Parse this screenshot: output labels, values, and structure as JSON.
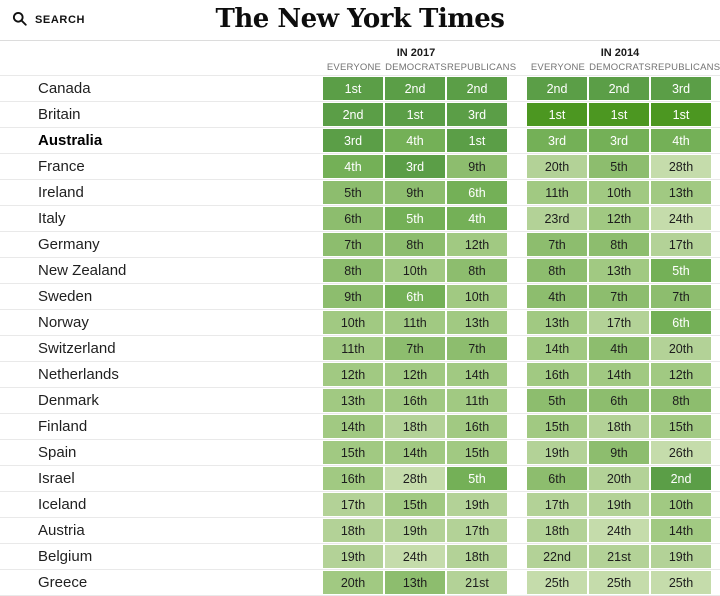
{
  "topbar": {
    "search_label": "SEARCH",
    "brand": "The New York Times"
  },
  "colors": {
    "levels": [
      "#4c9721",
      "#5b9e47",
      "#74b057",
      "#8dbd6e",
      "#a1c982",
      "#b3d297",
      "#c5dcab"
    ],
    "dark_text": "#1d1d1d",
    "light_text": "#ffffff",
    "white_text_max_level": 2
  },
  "table": {
    "groups": [
      {
        "label": "IN 2017"
      },
      {
        "label": "IN 2014"
      }
    ],
    "columns": [
      "EVERYONE",
      "DEMOCRATS",
      "REPUBLICANS"
    ],
    "rows": [
      {
        "country": "Canada",
        "bold": false,
        "cells": [
          {
            "text": "1st",
            "level": 1
          },
          {
            "text": "2nd",
            "level": 1
          },
          {
            "text": "2nd",
            "level": 1
          },
          {
            "text": "2nd",
            "level": 1
          },
          {
            "text": "2nd",
            "level": 1
          },
          {
            "text": "3rd",
            "level": 1
          }
        ]
      },
      {
        "country": "Britain",
        "bold": false,
        "cells": [
          {
            "text": "2nd",
            "level": 1
          },
          {
            "text": "1st",
            "level": 1
          },
          {
            "text": "3rd",
            "level": 1
          },
          {
            "text": "1st",
            "level": 0
          },
          {
            "text": "1st",
            "level": 0
          },
          {
            "text": "1st",
            "level": 0
          }
        ]
      },
      {
        "country": "Australia",
        "bold": true,
        "cells": [
          {
            "text": "3rd",
            "level": 1
          },
          {
            "text": "4th",
            "level": 2
          },
          {
            "text": "1st",
            "level": 1
          },
          {
            "text": "3rd",
            "level": 2
          },
          {
            "text": "3rd",
            "level": 2
          },
          {
            "text": "4th",
            "level": 2
          }
        ]
      },
      {
        "country": "France",
        "bold": false,
        "cells": [
          {
            "text": "4th",
            "level": 2
          },
          {
            "text": "3rd",
            "level": 1
          },
          {
            "text": "9th",
            "level": 3
          },
          {
            "text": "20th",
            "level": 5
          },
          {
            "text": "5th",
            "level": 3
          },
          {
            "text": "28th",
            "level": 6
          }
        ]
      },
      {
        "country": "Ireland",
        "bold": false,
        "cells": [
          {
            "text": "5th",
            "level": 3
          },
          {
            "text": "9th",
            "level": 3
          },
          {
            "text": "6th",
            "level": 2
          },
          {
            "text": "11th",
            "level": 4
          },
          {
            "text": "10th",
            "level": 4
          },
          {
            "text": "13th",
            "level": 4
          }
        ]
      },
      {
        "country": "Italy",
        "bold": false,
        "cells": [
          {
            "text": "6th",
            "level": 3
          },
          {
            "text": "5th",
            "level": 2
          },
          {
            "text": "4th",
            "level": 2
          },
          {
            "text": "23rd",
            "level": 5
          },
          {
            "text": "12th",
            "level": 4
          },
          {
            "text": "24th",
            "level": 6
          }
        ]
      },
      {
        "country": "Germany",
        "bold": false,
        "cells": [
          {
            "text": "7th",
            "level": 3
          },
          {
            "text": "8th",
            "level": 3
          },
          {
            "text": "12th",
            "level": 4
          },
          {
            "text": "7th",
            "level": 3
          },
          {
            "text": "8th",
            "level": 3
          },
          {
            "text": "17th",
            "level": 5
          }
        ]
      },
      {
        "country": "New Zealand",
        "bold": false,
        "cells": [
          {
            "text": "8th",
            "level": 3
          },
          {
            "text": "10th",
            "level": 4
          },
          {
            "text": "8th",
            "level": 3
          },
          {
            "text": "8th",
            "level": 3
          },
          {
            "text": "13th",
            "level": 4
          },
          {
            "text": "5th",
            "level": 2
          }
        ]
      },
      {
        "country": "Sweden",
        "bold": false,
        "cells": [
          {
            "text": "9th",
            "level": 3
          },
          {
            "text": "6th",
            "level": 2
          },
          {
            "text": "10th",
            "level": 4
          },
          {
            "text": "4th",
            "level": 3
          },
          {
            "text": "7th",
            "level": 3
          },
          {
            "text": "7th",
            "level": 3
          }
        ]
      },
      {
        "country": "Norway",
        "bold": false,
        "cells": [
          {
            "text": "10th",
            "level": 4
          },
          {
            "text": "11th",
            "level": 4
          },
          {
            "text": "13th",
            "level": 4
          },
          {
            "text": "13th",
            "level": 4
          },
          {
            "text": "17th",
            "level": 5
          },
          {
            "text": "6th",
            "level": 2
          }
        ]
      },
      {
        "country": "Switzerland",
        "bold": false,
        "cells": [
          {
            "text": "11th",
            "level": 4
          },
          {
            "text": "7th",
            "level": 3
          },
          {
            "text": "7th",
            "level": 3
          },
          {
            "text": "14th",
            "level": 4
          },
          {
            "text": "4th",
            "level": 3
          },
          {
            "text": "20th",
            "level": 5
          }
        ]
      },
      {
        "country": "Netherlands",
        "bold": false,
        "cells": [
          {
            "text": "12th",
            "level": 4
          },
          {
            "text": "12th",
            "level": 4
          },
          {
            "text": "14th",
            "level": 4
          },
          {
            "text": "16th",
            "level": 4
          },
          {
            "text": "14th",
            "level": 4
          },
          {
            "text": "12th",
            "level": 4
          }
        ]
      },
      {
        "country": "Denmark",
        "bold": false,
        "cells": [
          {
            "text": "13th",
            "level": 4
          },
          {
            "text": "16th",
            "level": 4
          },
          {
            "text": "11th",
            "level": 4
          },
          {
            "text": "5th",
            "level": 3
          },
          {
            "text": "6th",
            "level": 3
          },
          {
            "text": "8th",
            "level": 3
          }
        ]
      },
      {
        "country": "Finland",
        "bold": false,
        "cells": [
          {
            "text": "14th",
            "level": 4
          },
          {
            "text": "18th",
            "level": 5
          },
          {
            "text": "16th",
            "level": 4
          },
          {
            "text": "15th",
            "level": 4
          },
          {
            "text": "18th",
            "level": 5
          },
          {
            "text": "15th",
            "level": 4
          }
        ]
      },
      {
        "country": "Spain",
        "bold": false,
        "cells": [
          {
            "text": "15th",
            "level": 4
          },
          {
            "text": "14th",
            "level": 4
          },
          {
            "text": "15th",
            "level": 4
          },
          {
            "text": "19th",
            "level": 5
          },
          {
            "text": "9th",
            "level": 3
          },
          {
            "text": "26th",
            "level": 6
          }
        ]
      },
      {
        "country": "Israel",
        "bold": false,
        "cells": [
          {
            "text": "16th",
            "level": 4
          },
          {
            "text": "28th",
            "level": 6
          },
          {
            "text": "5th",
            "level": 2
          },
          {
            "text": "6th",
            "level": 3
          },
          {
            "text": "20th",
            "level": 5
          },
          {
            "text": "2nd",
            "level": 1
          }
        ]
      },
      {
        "country": "Iceland",
        "bold": false,
        "cells": [
          {
            "text": "17th",
            "level": 5
          },
          {
            "text": "15th",
            "level": 4
          },
          {
            "text": "19th",
            "level": 5
          },
          {
            "text": "17th",
            "level": 5
          },
          {
            "text": "19th",
            "level": 5
          },
          {
            "text": "10th",
            "level": 4
          }
        ]
      },
      {
        "country": "Austria",
        "bold": false,
        "cells": [
          {
            "text": "18th",
            "level": 5
          },
          {
            "text": "19th",
            "level": 5
          },
          {
            "text": "17th",
            "level": 5
          },
          {
            "text": "18th",
            "level": 5
          },
          {
            "text": "24th",
            "level": 6
          },
          {
            "text": "14th",
            "level": 4
          }
        ]
      },
      {
        "country": "Belgium",
        "bold": false,
        "cells": [
          {
            "text": "19th",
            "level": 5
          },
          {
            "text": "24th",
            "level": 6
          },
          {
            "text": "18th",
            "level": 5
          },
          {
            "text": "22nd",
            "level": 5
          },
          {
            "text": "21st",
            "level": 5
          },
          {
            "text": "19th",
            "level": 5
          }
        ]
      },
      {
        "country": "Greece",
        "bold": false,
        "cells": [
          {
            "text": "20th",
            "level": 4
          },
          {
            "text": "13th",
            "level": 3
          },
          {
            "text": "21st",
            "level": 5
          },
          {
            "text": "25th",
            "level": 6
          },
          {
            "text": "25th",
            "level": 6
          },
          {
            "text": "25th",
            "level": 6
          }
        ]
      }
    ]
  }
}
